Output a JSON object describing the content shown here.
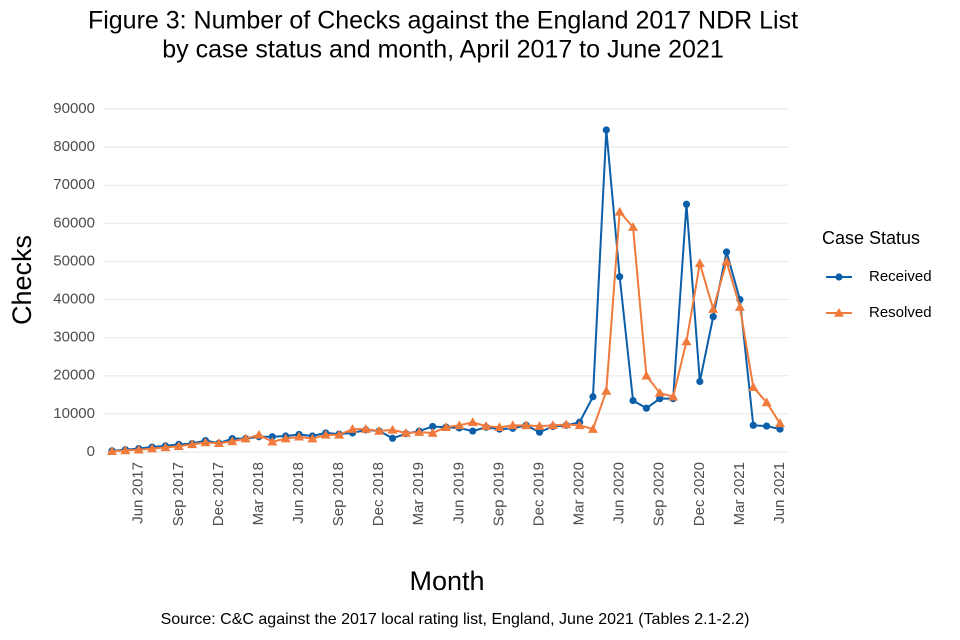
{
  "chart_data": {
    "type": "line",
    "title": [
      "Figure 3: Number of Checks against the England 2017 NDR List",
      "by case status and month, April 2017 to June 2021"
    ],
    "x_label": "Month",
    "y_label": "Checks",
    "caption": "Source: C&C against the 2017 local rating list, England, June 2021 (Tables 2.1-2.2)",
    "legend_title": "Case Status",
    "legend": "right",
    "grid": true,
    "categories": [
      null,
      null,
      "Jun 2017",
      null,
      null,
      "Sep 2017",
      null,
      null,
      "Dec 2017",
      null,
      null,
      "Mar 2018",
      null,
      null,
      "Jun 2018",
      null,
      null,
      "Sep 2018",
      null,
      null,
      "Dec 2018",
      null,
      null,
      "Mar 2019",
      null,
      null,
      "Jun 2019",
      null,
      null,
      "Sep 2019",
      null,
      null,
      "Dec 2019",
      null,
      null,
      "Mar 2020",
      null,
      null,
      "Jun 2020",
      null,
      null,
      "Sep 2020",
      null,
      null,
      "Dec 2020",
      null,
      null,
      "Mar 2021",
      null,
      null,
      "Jun 2021"
    ],
    "ylim": [
      0,
      90000
    ],
    "yticks": [
      0,
      10000,
      20000,
      30000,
      40000,
      50000,
      60000,
      70000,
      80000,
      90000
    ],
    "series": [
      {
        "name": "Received",
        "color": "#0b5ea8",
        "marker": "circle",
        "values": [
          300,
          600,
          900,
          1300,
          1600,
          2000,
          2200,
          3000,
          2300,
          3500,
          3500,
          4000,
          4000,
          4200,
          4600,
          4200,
          5000,
          4700,
          5000,
          5800,
          5500,
          3600,
          4800,
          5500,
          6700,
          6500,
          6300,
          5500,
          6500,
          6000,
          6200,
          7000,
          5200,
          6700,
          7000,
          7800,
          14500,
          84500,
          46000,
          13500,
          11500,
          14000,
          14000,
          65000,
          18500,
          35500,
          52500,
          40000,
          7000,
          6800,
          6000
        ]
      },
      {
        "name": "Resolved",
        "color": "#f07a3c",
        "marker": "triangle",
        "values": [
          200,
          400,
          600,
          900,
          1200,
          1500,
          2000,
          2500,
          2300,
          2800,
          3500,
          4500,
          2700,
          3500,
          4000,
          3500,
          4500,
          4500,
          6000,
          6000,
          5500,
          5800,
          5000,
          5200,
          5000,
          6500,
          7000,
          7800,
          6800,
          6500,
          7000,
          7000,
          6800,
          7000,
          7200,
          7000,
          6000,
          16000,
          63000,
          59000,
          20000,
          15500,
          14500,
          29000,
          49500,
          37500,
          50000,
          38000,
          17000,
          13000,
          7500
        ]
      }
    ]
  }
}
